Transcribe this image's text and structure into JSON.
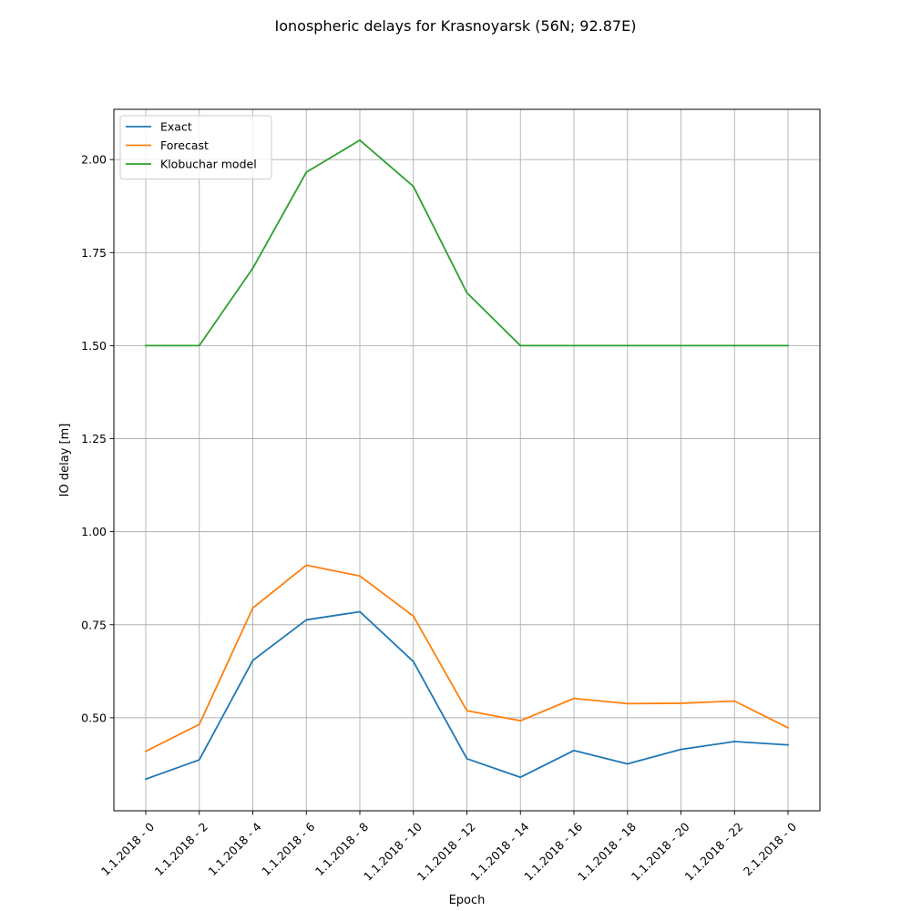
{
  "chart_data": {
    "type": "line",
    "title": "Ionospheric delays for Krasnoyarsk (56N; 92.87E)",
    "xlabel": "Epoch",
    "ylabel": "IO delay [m]",
    "categories": [
      "1.1.2018 - 0",
      "1.1.2018 - 2",
      "1.1.2018 - 4",
      "1.1.2018 - 6",
      "1.1.2018 - 8",
      "1.1.2018 - 10",
      "1.1.2018 - 12",
      "1.1.2018 - 14",
      "1.1.2018 - 16",
      "1.1.2018 - 18",
      "1.1.2018 - 20",
      "1.1.2018 - 22",
      "2.1.2018 - 0"
    ],
    "ylim": [
      0.25,
      2.135
    ],
    "yticks": [
      0.5,
      0.75,
      1.0,
      1.25,
      1.5,
      1.75,
      2.0
    ],
    "yticklabels": [
      "0.50",
      "0.75",
      "1.00",
      "1.25",
      "1.50",
      "1.75",
      "2.00"
    ],
    "grid": true,
    "legend_position": "top-left",
    "series": [
      {
        "name": "Exact",
        "color": "#1f77b4",
        "values": [
          0.335,
          0.387,
          0.654,
          0.763,
          0.785,
          0.651,
          0.39,
          0.34,
          0.412,
          0.376,
          0.415,
          0.436,
          0.427
        ]
      },
      {
        "name": "Forecast",
        "color": "#ff7f0e",
        "values": [
          0.41,
          0.482,
          0.795,
          0.91,
          0.881,
          0.773,
          0.519,
          0.492,
          0.552,
          0.538,
          0.539,
          0.545,
          0.473
        ]
      },
      {
        "name": "Klobuchar model",
        "color": "#2ca02c",
        "values": [
          1.5,
          1.5,
          1.708,
          1.966,
          2.052,
          1.928,
          1.642,
          1.5,
          1.5,
          1.5,
          1.5,
          1.5,
          1.5
        ]
      }
    ]
  }
}
